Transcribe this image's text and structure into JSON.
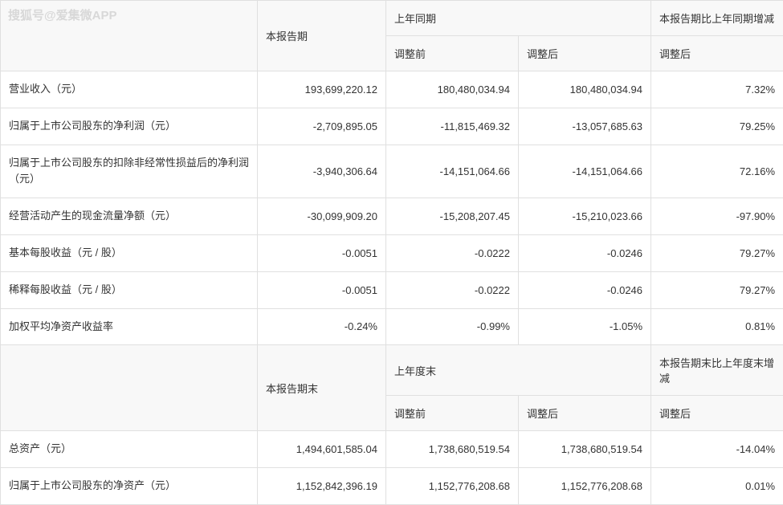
{
  "watermark": "搜狐号@爱集微APP",
  "table": {
    "top_headers": {
      "col2": "本报告期",
      "col3_4": "上年同期",
      "col5": "本报告期比上年同期增减",
      "sub_before": "调整前",
      "sub_after": "调整后",
      "sub_after2": "调整后"
    },
    "rows_top": [
      {
        "label": "营业收入（元）",
        "c2": "193,699,220.12",
        "c3": "180,480,034.94",
        "c4": "180,480,034.94",
        "c5": "7.32%"
      },
      {
        "label": "归属于上市公司股东的净利润（元）",
        "c2": "-2,709,895.05",
        "c3": "-11,815,469.32",
        "c4": "-13,057,685.63",
        "c5": "79.25%"
      },
      {
        "label": "归属于上市公司股东的扣除非经常性损益后的净利润（元）",
        "c2": "-3,940,306.64",
        "c3": "-14,151,064.66",
        "c4": "-14,151,064.66",
        "c5": "72.16%"
      },
      {
        "label": "经营活动产生的现金流量净额（元）",
        "c2": "-30,099,909.20",
        "c3": "-15,208,207.45",
        "c4": "-15,210,023.66",
        "c5": "-97.90%"
      },
      {
        "label": "基本每股收益（元 / 股）",
        "c2": "-0.0051",
        "c3": "-0.0222",
        "c4": "-0.0246",
        "c5": "79.27%"
      },
      {
        "label": "稀释每股收益（元 / 股）",
        "c2": "-0.0051",
        "c3": "-0.0222",
        "c4": "-0.0246",
        "c5": "79.27%"
      },
      {
        "label": "加权平均净资产收益率",
        "c2": "-0.24%",
        "c3": "-0.99%",
        "c4": "-1.05%",
        "c5": "0.81%"
      }
    ],
    "mid_headers": {
      "col2": "本报告期末",
      "col3_4": "上年度末",
      "col5": "本报告期末比上年度末增减",
      "sub_before": "调整前",
      "sub_after": "调整后",
      "sub_after2": "调整后"
    },
    "rows_bottom": [
      {
        "label": "总资产（元）",
        "c2": "1,494,601,585.04",
        "c3": "1,738,680,519.54",
        "c4": "1,738,680,519.54",
        "c5": "-14.04%"
      },
      {
        "label": "归属于上市公司股东的净资产（元）",
        "c2": "1,152,842,396.19",
        "c3": "1,152,776,208.68",
        "c4": "1,152,776,208.68",
        "c5": "0.01%"
      }
    ]
  },
  "colors": {
    "border": "#e0e0e0",
    "header_bg": "#f8f8f8",
    "text": "#333333",
    "watermark": "#d8d8d8",
    "background": "#ffffff"
  },
  "typography": {
    "body_fontsize": 13,
    "watermark_fontsize": 15
  }
}
